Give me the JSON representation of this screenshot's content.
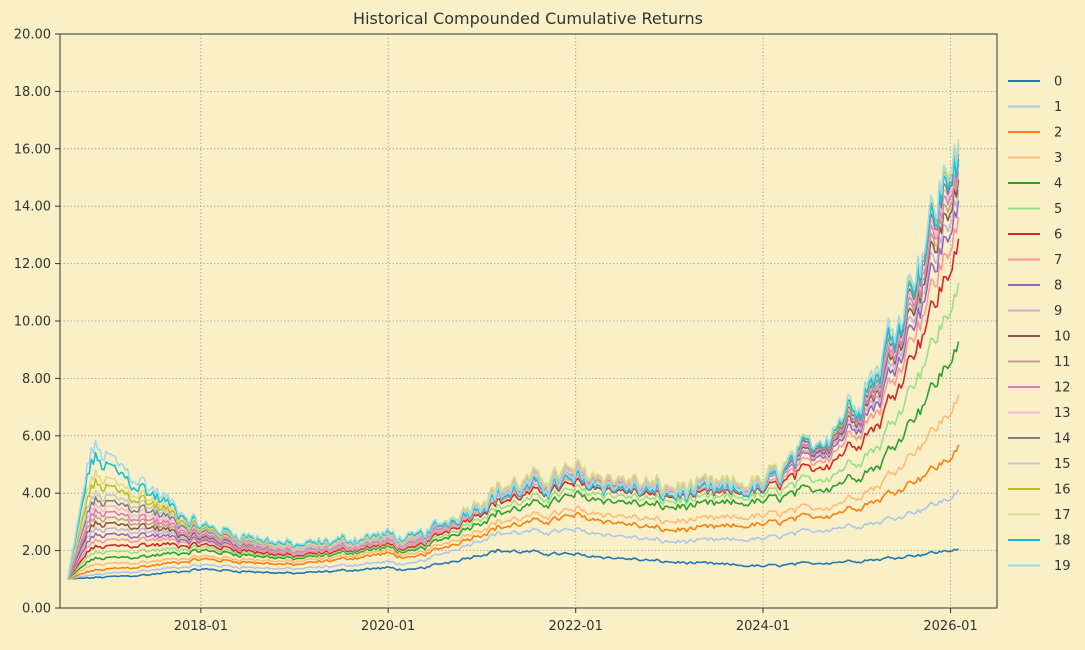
{
  "chart_data": {
    "type": "line",
    "title": "Historical Compounded Cumulative Returns",
    "xlabel": "",
    "ylabel": "",
    "x_range": [
      "2016-07-01",
      "2026-07-01"
    ],
    "ylim": [
      0,
      20
    ],
    "y_ticks": [
      "0.00",
      "2.00",
      "4.00",
      "6.00",
      "8.00",
      "10.00",
      "12.00",
      "14.00",
      "16.00",
      "18.00",
      "20.00"
    ],
    "x_ticks": [
      {
        "date": "2018-01-01",
        "label": "2018-01"
      },
      {
        "date": "2020-01-01",
        "label": "2020-01"
      },
      {
        "date": "2022-01-01",
        "label": "2022-01"
      },
      {
        "date": "2024-01-01",
        "label": "2024-01"
      },
      {
        "date": "2026-01-01",
        "label": "2026-01"
      }
    ],
    "grid": true,
    "legend_position": "right",
    "anchor_dates": [
      "2016-08-01",
      "2016-11-01",
      "2017-06-01",
      "2018-01-01",
      "2019-01-01",
      "2020-01-01",
      "2020-04-01",
      "2021-03-01",
      "2022-01-01",
      "2023-01-01",
      "2024-01-01",
      "2024-10-01",
      "2025-04-01",
      "2026-01-01",
      "2026-02-01"
    ],
    "series": [
      {
        "name": "0",
        "color": "#1f77b4",
        "values": [
          1.0,
          1.05,
          1.15,
          1.35,
          1.2,
          1.4,
          1.3,
          2.0,
          1.85,
          1.6,
          1.45,
          1.6,
          1.7,
          2.0,
          2.1
        ]
      },
      {
        "name": "1",
        "color": "#aec7e8",
        "values": [
          1.0,
          1.15,
          1.3,
          1.5,
          1.35,
          1.6,
          1.5,
          2.6,
          2.7,
          2.3,
          2.4,
          2.8,
          3.0,
          3.8,
          4.2
        ]
      },
      {
        "name": "2",
        "color": "#ff7f0e",
        "values": [
          1.0,
          1.3,
          1.45,
          1.7,
          1.5,
          1.9,
          1.7,
          2.8,
          3.2,
          2.7,
          2.9,
          3.3,
          3.8,
          5.2,
          5.8
        ]
      },
      {
        "name": "3",
        "color": "#ffbb78",
        "values": [
          1.0,
          1.5,
          1.6,
          1.8,
          1.6,
          2.0,
          1.8,
          3.0,
          3.4,
          3.0,
          3.2,
          3.6,
          4.3,
          6.8,
          7.6
        ]
      },
      {
        "name": "4",
        "color": "#2ca02c",
        "values": [
          1.0,
          1.7,
          1.8,
          2.0,
          1.7,
          2.1,
          1.9,
          3.3,
          3.9,
          3.5,
          3.7,
          4.3,
          5.0,
          8.6,
          9.5
        ]
      },
      {
        "name": "5",
        "color": "#98df8a",
        "values": [
          1.0,
          1.9,
          2.0,
          2.1,
          1.75,
          2.15,
          1.95,
          3.5,
          4.1,
          3.7,
          3.9,
          4.7,
          5.7,
          10.4,
          11.6
        ]
      },
      {
        "name": "6",
        "color": "#d62728",
        "values": [
          1.0,
          2.1,
          2.2,
          2.2,
          1.8,
          2.2,
          2.0,
          3.7,
          4.3,
          3.85,
          4.05,
          5.2,
          6.5,
          11.8,
          13.2
        ]
      },
      {
        "name": "7",
        "color": "#ff9896",
        "values": [
          1.0,
          2.3,
          2.4,
          2.3,
          1.85,
          2.25,
          2.05,
          3.8,
          4.4,
          3.9,
          4.1,
          5.5,
          7.0,
          12.6,
          14.0
        ]
      },
      {
        "name": "8",
        "color": "#9467bd",
        "values": [
          1.0,
          2.5,
          2.55,
          2.35,
          1.9,
          2.3,
          2.1,
          3.9,
          4.5,
          4.0,
          4.2,
          5.7,
          7.3,
          13.2,
          14.6
        ]
      },
      {
        "name": "9",
        "color": "#c5b0d5",
        "values": [
          1.0,
          2.7,
          2.7,
          2.4,
          1.9,
          2.3,
          2.1,
          3.9,
          4.5,
          4.0,
          4.2,
          5.8,
          7.5,
          13.6,
          15.0
        ]
      },
      {
        "name": "10",
        "color": "#8c564b",
        "values": [
          1.0,
          2.9,
          2.85,
          2.45,
          1.95,
          2.35,
          2.15,
          4.0,
          4.6,
          4.05,
          4.25,
          5.9,
          7.7,
          14.0,
          15.4
        ]
      },
      {
        "name": "11",
        "color": "#c49c94",
        "values": [
          1.0,
          3.1,
          3.0,
          2.5,
          1.95,
          2.35,
          2.15,
          4.0,
          4.6,
          4.05,
          4.25,
          6.0,
          7.8,
          14.3,
          15.7
        ]
      },
      {
        "name": "12",
        "color": "#e377c2",
        "values": [
          1.0,
          3.3,
          3.15,
          2.55,
          2.0,
          2.4,
          2.2,
          4.1,
          4.7,
          4.1,
          4.3,
          6.0,
          7.9,
          14.6,
          16.0
        ]
      },
      {
        "name": "13",
        "color": "#f7b6d2",
        "values": [
          1.0,
          3.5,
          3.3,
          2.6,
          2.0,
          2.4,
          2.2,
          4.1,
          4.7,
          4.1,
          4.3,
          6.1,
          8.0,
          14.8,
          16.2
        ]
      },
      {
        "name": "14",
        "color": "#7f7f7f",
        "values": [
          1.0,
          3.7,
          3.45,
          2.65,
          2.05,
          2.45,
          2.25,
          4.15,
          4.75,
          4.15,
          4.35,
          6.1,
          8.1,
          15.0,
          16.4
        ]
      },
      {
        "name": "15",
        "color": "#c7c7c7",
        "values": [
          1.0,
          3.9,
          3.6,
          2.7,
          2.05,
          2.45,
          2.25,
          4.15,
          4.75,
          4.15,
          4.35,
          6.2,
          8.2,
          15.2,
          16.6
        ]
      },
      {
        "name": "16",
        "color": "#bcbd22",
        "values": [
          1.0,
          4.3,
          3.75,
          2.75,
          2.1,
          2.5,
          2.3,
          4.2,
          4.8,
          4.2,
          4.4,
          6.2,
          8.3,
          15.4,
          16.8
        ]
      },
      {
        "name": "17",
        "color": "#dbdb8d",
        "values": [
          1.0,
          4.6,
          3.9,
          2.8,
          2.1,
          2.5,
          2.3,
          4.2,
          4.8,
          4.2,
          4.4,
          6.3,
          8.4,
          15.6,
          17.0
        ]
      },
      {
        "name": "18",
        "color": "#17becf",
        "values": [
          1.0,
          5.2,
          4.1,
          2.85,
          2.15,
          2.55,
          2.35,
          3.9,
          4.4,
          3.9,
          4.1,
          6.3,
          8.3,
          15.2,
          16.3
        ]
      },
      {
        "name": "19",
        "color": "#9edae5",
        "values": [
          1.0,
          5.6,
          4.3,
          2.9,
          2.2,
          2.6,
          2.4,
          4.0,
          4.5,
          4.0,
          4.2,
          6.4,
          8.6,
          15.5,
          16.9
        ]
      }
    ]
  }
}
